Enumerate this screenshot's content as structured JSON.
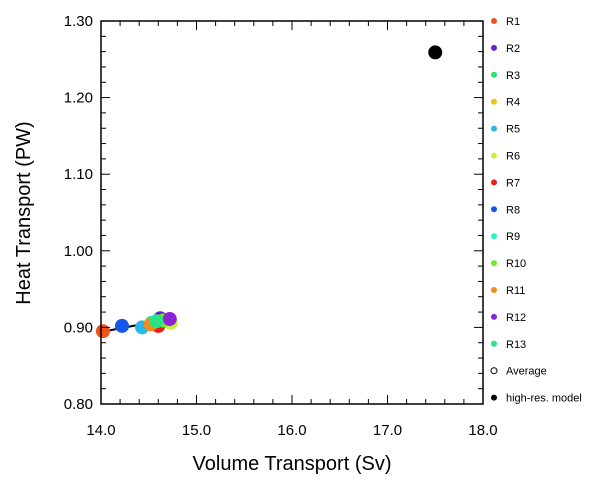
{
  "chart_data": {
    "type": "scatter",
    "title": "",
    "xlabel": "Volume Transport (Sv)",
    "ylabel": "Heat Transport (PW)",
    "xlim": [
      14.0,
      18.0
    ],
    "ylim": [
      0.8,
      1.3
    ],
    "x_ticks": [
      "14.0",
      "15.0",
      "16.0",
      "17.0",
      "18.0"
    ],
    "y_ticks": [
      "0.80",
      "0.90",
      "1.00",
      "1.10",
      "1.20",
      "1.30"
    ],
    "grid": false,
    "legend_position": "right",
    "fit_line": {
      "x": [
        14.0,
        14.76
      ],
      "y": [
        0.894,
        0.912
      ],
      "color": "#000000"
    },
    "series": [
      {
        "name": "R1",
        "color": "#f2501a",
        "x": [
          14.02
        ],
        "y": [
          0.895
        ]
      },
      {
        "name": "R2",
        "color": "#6a1fd6",
        "x": [
          14.62
        ],
        "y": [
          0.912
        ]
      },
      {
        "name": "R3",
        "color": "#28e36c",
        "x": [
          14.56
        ],
        "y": [
          0.905
        ]
      },
      {
        "name": "R4",
        "color": "#f0c21a",
        "x": [
          14.6
        ],
        "y": [
          0.903
        ]
      },
      {
        "name": "R5",
        "color": "#2ab7ea",
        "x": [
          14.43
        ],
        "y": [
          0.9
        ]
      },
      {
        "name": "R6",
        "color": "#c8f03a",
        "x": [
          14.73
        ],
        "y": [
          0.906
        ]
      },
      {
        "name": "R7",
        "color": "#e8201a",
        "x": [
          14.6
        ],
        "y": [
          0.902
        ]
      },
      {
        "name": "R8",
        "color": "#1557e8",
        "x": [
          14.22
        ],
        "y": [
          0.902
        ]
      },
      {
        "name": "R9",
        "color": "#2ef0c8",
        "x": [
          14.53
        ],
        "y": [
          0.906
        ]
      },
      {
        "name": "R10",
        "color": "#6bea2a",
        "x": [
          14.65
        ],
        "y": [
          0.909
        ]
      },
      {
        "name": "R11",
        "color": "#f58a1c",
        "x": [
          14.52
        ],
        "y": [
          0.904
        ]
      },
      {
        "name": "R12",
        "color": "#8a22d6",
        "x": [
          14.72
        ],
        "y": [
          0.911
        ]
      },
      {
        "name": "R13",
        "color": "#2ae386",
        "x": [
          14.58
        ],
        "y": [
          0.908
        ]
      },
      {
        "name": "Average",
        "color": "#000000",
        "hollow": true,
        "x": [],
        "y": []
      },
      {
        "name": "high-res. model",
        "color": "#000000",
        "x": [
          17.5
        ],
        "y": [
          1.259
        ]
      }
    ]
  }
}
